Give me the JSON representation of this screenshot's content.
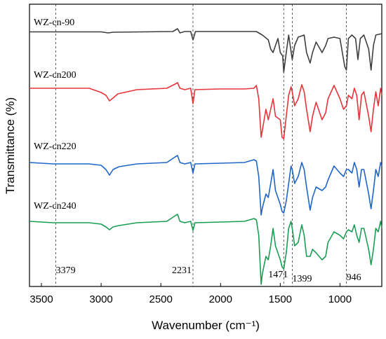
{
  "chart_data": {
    "type": "line",
    "title": "",
    "xlabel": "Wavenumber (cm⁻¹)",
    "ylabel": "Transmittance (%)",
    "xlim": [
      3600,
      650
    ],
    "x_reversed": true,
    "xticks": [
      3500,
      3000,
      2500,
      2000,
      1500,
      1000
    ],
    "xtick_labels": [
      "3500",
      "3000",
      "2500",
      "2000",
      "1500",
      "1000"
    ],
    "yticks_shown": false,
    "grid": false,
    "reference_lines": [
      {
        "x": 3379,
        "label": "3379"
      },
      {
        "x": 2231,
        "label": "2231"
      },
      {
        "x": 1471,
        "label": "1471"
      },
      {
        "x": 1399,
        "label": "1399"
      },
      {
        "x": 946,
        "label": "946"
      }
    ],
    "series": [
      {
        "name": "WZ-cn-90",
        "color": "#3f3f3f",
        "offset": 0,
        "points": [
          [
            3600,
            0.5
          ],
          [
            3300,
            0.5
          ],
          [
            3000,
            0.5
          ],
          [
            2940,
            2
          ],
          [
            2900,
            1
          ],
          [
            2400,
            0
          ],
          [
            2360,
            -4
          ],
          [
            2340,
            2
          ],
          [
            2300,
            0
          ],
          [
            2250,
            0
          ],
          [
            2231,
            12
          ],
          [
            2210,
            0
          ],
          [
            1700,
            0
          ],
          [
            1650,
            5
          ],
          [
            1600,
            12
          ],
          [
            1580,
            25
          ],
          [
            1560,
            30
          ],
          [
            1540,
            20
          ],
          [
            1520,
            10
          ],
          [
            1500,
            30
          ],
          [
            1480,
            35
          ],
          [
            1471,
            58
          ],
          [
            1450,
            30
          ],
          [
            1430,
            5
          ],
          [
            1400,
            40
          ],
          [
            1380,
            20
          ],
          [
            1350,
            8
          ],
          [
            1300,
            5
          ],
          [
            1280,
            30
          ],
          [
            1250,
            45
          ],
          [
            1230,
            30
          ],
          [
            1200,
            15
          ],
          [
            1150,
            30
          ],
          [
            1120,
            20
          ],
          [
            1100,
            10
          ],
          [
            1050,
            8
          ],
          [
            1000,
            10
          ],
          [
            960,
            50
          ],
          [
            946,
            55
          ],
          [
            930,
            10
          ],
          [
            900,
            5
          ],
          [
            870,
            10
          ],
          [
            850,
            40
          ],
          [
            830,
            10
          ],
          [
            800,
            5
          ],
          [
            760,
            25
          ],
          [
            740,
            55
          ],
          [
            720,
            20
          ],
          [
            700,
            5
          ],
          [
            650,
            3
          ]
        ]
      },
      {
        "name": "WZ-cn200",
        "color": "#e8333a",
        "offset": 0,
        "points": [
          [
            3600,
            0
          ],
          [
            3400,
            0
          ],
          [
            3300,
            0
          ],
          [
            3100,
            0
          ],
          [
            3000,
            6
          ],
          [
            2960,
            10
          ],
          [
            2930,
            18
          ],
          [
            2900,
            14
          ],
          [
            2860,
            8
          ],
          [
            2700,
            2
          ],
          [
            2450,
            0
          ],
          [
            2380,
            -6
          ],
          [
            2360,
            -8
          ],
          [
            2340,
            0
          ],
          [
            2300,
            2
          ],
          [
            2250,
            0
          ],
          [
            2231,
            22
          ],
          [
            2215,
            2
          ],
          [
            2000,
            1
          ],
          [
            1800,
            1
          ],
          [
            1720,
            0
          ],
          [
            1700,
            -4
          ],
          [
            1680,
            15
          ],
          [
            1660,
            70
          ],
          [
            1650,
            60
          ],
          [
            1620,
            30
          ],
          [
            1600,
            45
          ],
          [
            1580,
            30
          ],
          [
            1560,
            15
          ],
          [
            1540,
            40
          ],
          [
            1500,
            45
          ],
          [
            1485,
            70
          ],
          [
            1471,
            72
          ],
          [
            1450,
            40
          ],
          [
            1430,
            10
          ],
          [
            1410,
            -2
          ],
          [
            1400,
            5
          ],
          [
            1380,
            25
          ],
          [
            1350,
            15
          ],
          [
            1320,
            -5
          ],
          [
            1300,
            5
          ],
          [
            1280,
            30
          ],
          [
            1250,
            62
          ],
          [
            1230,
            40
          ],
          [
            1200,
            20
          ],
          [
            1150,
            45
          ],
          [
            1120,
            35
          ],
          [
            1100,
            15
          ],
          [
            1050,
            -4
          ],
          [
            1000,
            15
          ],
          [
            970,
            30
          ],
          [
            946,
            25
          ],
          [
            930,
            10
          ],
          [
            900,
            15
          ],
          [
            880,
            0
          ],
          [
            860,
            10
          ],
          [
            840,
            45
          ],
          [
            820,
            10
          ],
          [
            800,
            5
          ],
          [
            760,
            40
          ],
          [
            740,
            62
          ],
          [
            720,
            30
          ],
          [
            700,
            5
          ],
          [
            680,
            25
          ],
          [
            660,
            0
          ],
          [
            650,
            10
          ]
        ]
      },
      {
        "name": "WZ-cn220",
        "color": "#1f66c7",
        "offset": 0,
        "points": [
          [
            3600,
            0
          ],
          [
            3400,
            2
          ],
          [
            3300,
            2
          ],
          [
            3100,
            2
          ],
          [
            3000,
            4
          ],
          [
            2960,
            10
          ],
          [
            2930,
            18
          ],
          [
            2900,
            10
          ],
          [
            2850,
            6
          ],
          [
            2700,
            2
          ],
          [
            2450,
            0
          ],
          [
            2380,
            -8
          ],
          [
            2360,
            -10
          ],
          [
            2340,
            0
          ],
          [
            2300,
            2
          ],
          [
            2250,
            0
          ],
          [
            2231,
            15
          ],
          [
            2215,
            2
          ],
          [
            2000,
            1
          ],
          [
            1800,
            0
          ],
          [
            1720,
            -4
          ],
          [
            1700,
            -2
          ],
          [
            1680,
            20
          ],
          [
            1660,
            75
          ],
          [
            1650,
            65
          ],
          [
            1620,
            45
          ],
          [
            1600,
            50
          ],
          [
            1580,
            30
          ],
          [
            1560,
            10
          ],
          [
            1540,
            40
          ],
          [
            1500,
            60
          ],
          [
            1485,
            70
          ],
          [
            1471,
            72
          ],
          [
            1450,
            55
          ],
          [
            1430,
            30
          ],
          [
            1410,
            5
          ],
          [
            1400,
            10
          ],
          [
            1380,
            30
          ],
          [
            1350,
            20
          ],
          [
            1320,
            0
          ],
          [
            1300,
            10
          ],
          [
            1280,
            35
          ],
          [
            1250,
            68
          ],
          [
            1230,
            50
          ],
          [
            1200,
            35
          ],
          [
            1150,
            40
          ],
          [
            1120,
            35
          ],
          [
            1100,
            25
          ],
          [
            1050,
            5
          ],
          [
            1000,
            15
          ],
          [
            970,
            20
          ],
          [
            946,
            10
          ],
          [
            930,
            10
          ],
          [
            900,
            15
          ],
          [
            880,
            0
          ],
          [
            860,
            10
          ],
          [
            840,
            35
          ],
          [
            820,
            10
          ],
          [
            800,
            10
          ],
          [
            760,
            45
          ],
          [
            740,
            66
          ],
          [
            720,
            40
          ],
          [
            700,
            10
          ],
          [
            680,
            20
          ],
          [
            660,
            0
          ],
          [
            650,
            5
          ]
        ]
      },
      {
        "name": "WZ-cn240",
        "color": "#1a9e54",
        "offset": 0,
        "points": [
          [
            3600,
            0
          ],
          [
            3400,
            2
          ],
          [
            3300,
            2
          ],
          [
            3100,
            2
          ],
          [
            3000,
            4
          ],
          [
            2960,
            8
          ],
          [
            2930,
            12
          ],
          [
            2900,
            8
          ],
          [
            2850,
            6
          ],
          [
            2700,
            2
          ],
          [
            2450,
            0
          ],
          [
            2380,
            -8
          ],
          [
            2360,
            -10
          ],
          [
            2340,
            0
          ],
          [
            2300,
            2
          ],
          [
            2250,
            0
          ],
          [
            2231,
            13
          ],
          [
            2215,
            2
          ],
          [
            2000,
            1
          ],
          [
            1800,
            0
          ],
          [
            1720,
            -4
          ],
          [
            1700,
            -2
          ],
          [
            1680,
            20
          ],
          [
            1660,
            90
          ],
          [
            1650,
            75
          ],
          [
            1620,
            50
          ],
          [
            1600,
            55
          ],
          [
            1580,
            35
          ],
          [
            1560,
            10
          ],
          [
            1540,
            35
          ],
          [
            1500,
            55
          ],
          [
            1485,
            65
          ],
          [
            1471,
            68
          ],
          [
            1450,
            45
          ],
          [
            1430,
            10
          ],
          [
            1410,
            0
          ],
          [
            1400,
            10
          ],
          [
            1380,
            35
          ],
          [
            1350,
            30
          ],
          [
            1320,
            5
          ],
          [
            1300,
            20
          ],
          [
            1280,
            50
          ],
          [
            1250,
            50
          ],
          [
            1230,
            40
          ],
          [
            1200,
            45
          ],
          [
            1150,
            55
          ],
          [
            1120,
            50
          ],
          [
            1100,
            30
          ],
          [
            1050,
            15
          ],
          [
            1000,
            20
          ],
          [
            970,
            25
          ],
          [
            946,
            15
          ],
          [
            930,
            12
          ],
          [
            900,
            15
          ],
          [
            880,
            5
          ],
          [
            860,
            20
          ],
          [
            840,
            30
          ],
          [
            820,
            10
          ],
          [
            800,
            10
          ],
          [
            760,
            40
          ],
          [
            740,
            62
          ],
          [
            720,
            40
          ],
          [
            700,
            10
          ],
          [
            680,
            15
          ],
          [
            660,
            0
          ],
          [
            650,
            10
          ]
        ]
      }
    ]
  }
}
